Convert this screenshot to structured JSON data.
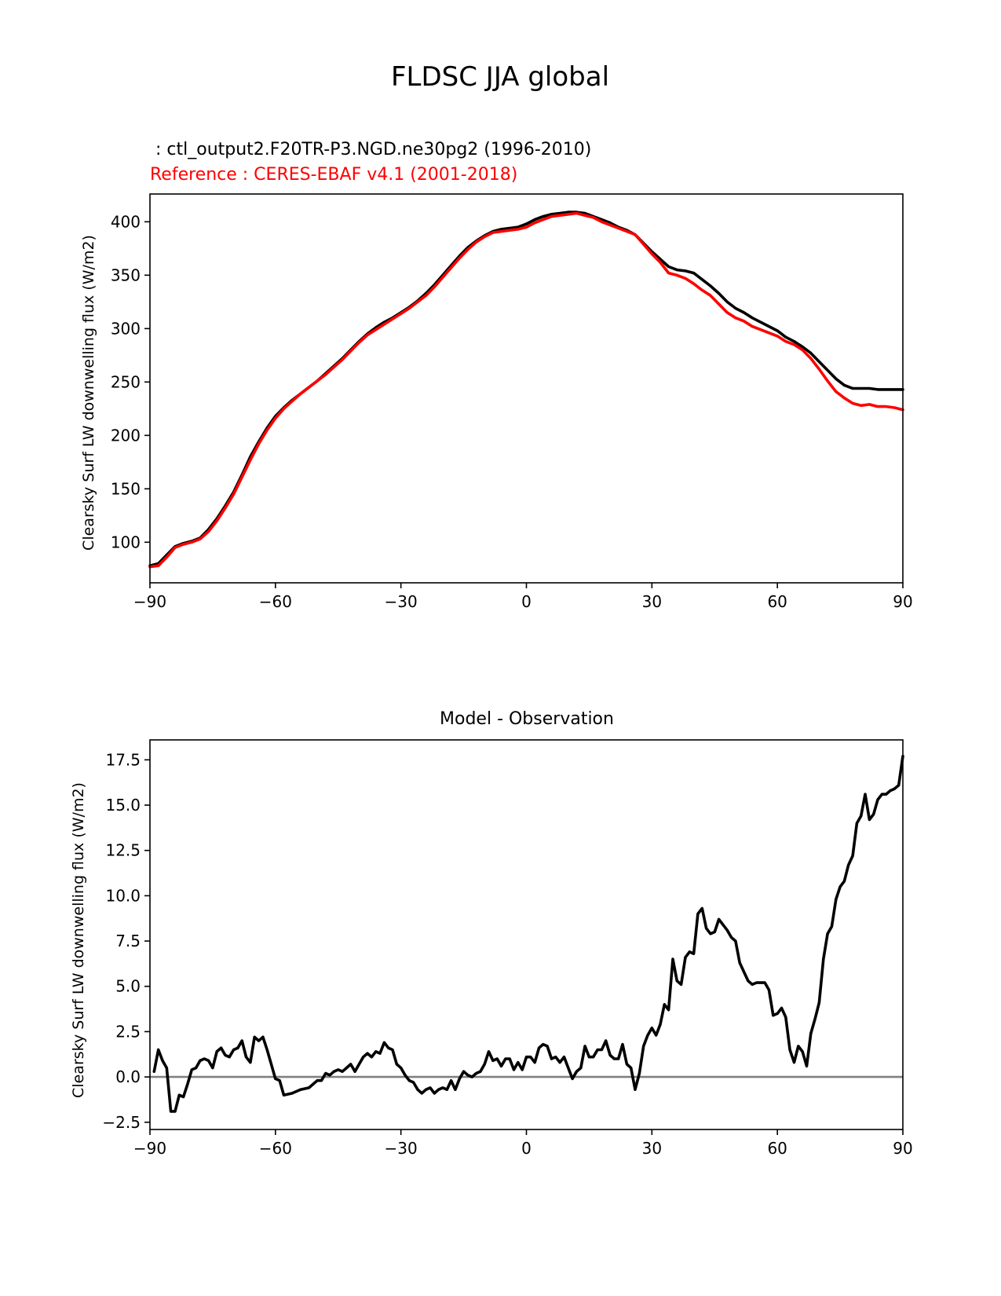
{
  "figure": {
    "title": "FLDSC JJA global"
  },
  "chart_data": [
    {
      "type": "line",
      "test_label": " : ctl_output2.F20TR-P3.NGD.ne30pg2 (1996-2010)",
      "ref_label": "Reference : CERES-EBAF v4.1 (2001-2018)",
      "xlabel": "",
      "ylabel": "Clearsky Surf LW downwelling flux (W/m2)",
      "xlim": [
        -90,
        90
      ],
      "ylim": [
        62,
        426
      ],
      "xticks": [
        -90,
        -60,
        -30,
        0,
        30,
        60,
        90
      ],
      "xtick_labels": [
        "−90",
        "−60",
        "−30",
        "0",
        "30",
        "60",
        "90"
      ],
      "yticks": [
        100,
        150,
        200,
        250,
        300,
        350,
        400
      ],
      "ytick_labels": [
        "100",
        "150",
        "200",
        "250",
        "300",
        "350",
        "400"
      ],
      "grid": false,
      "series": [
        {
          "color": "#000000",
          "x": [
            -90,
            -88,
            -86,
            -84,
            -82,
            -80,
            -78,
            -76,
            -74,
            -72,
            -70,
            -68,
            -66,
            -64,
            -62,
            -60,
            -58,
            -56,
            -54,
            -52,
            -50,
            -48,
            -46,
            -44,
            -42,
            -40,
            -38,
            -36,
            -34,
            -32,
            -30,
            -28,
            -26,
            -24,
            -22,
            -20,
            -18,
            -16,
            -14,
            -12,
            -10,
            -8,
            -6,
            -4,
            -2,
            0,
            2,
            4,
            6,
            8,
            10,
            12,
            14,
            16,
            18,
            20,
            22,
            24,
            26,
            28,
            30,
            32,
            34,
            36,
            38,
            40,
            42,
            44,
            46,
            48,
            50,
            52,
            54,
            56,
            58,
            60,
            62,
            64,
            66,
            68,
            70,
            72,
            74,
            76,
            78,
            80,
            82,
            84,
            86,
            88,
            90
          ],
          "y": [
            78,
            80,
            88,
            96,
            99,
            101,
            104,
            112,
            122,
            134,
            147,
            163,
            180,
            194,
            207,
            218,
            226,
            233,
            239,
            245,
            251,
            258,
            265,
            272,
            280,
            288,
            295,
            301,
            306,
            310,
            315,
            320,
            326,
            333,
            341,
            350,
            359,
            368,
            376,
            382,
            387,
            391,
            393,
            394,
            395,
            398,
            402,
            405,
            407,
            408,
            409,
            409,
            408,
            405,
            402,
            399,
            395,
            392,
            388,
            380,
            372,
            365,
            358,
            355,
            354,
            352,
            346,
            340,
            333,
            325,
            319,
            315,
            310,
            306,
            302,
            298,
            292,
            288,
            283,
            277,
            269,
            261,
            253,
            247,
            244,
            244,
            244,
            243,
            243,
            243,
            243
          ]
        },
        {
          "color": "#ff0000",
          "x": [
            -90,
            -88,
            -86,
            -84,
            -82,
            -80,
            -78,
            -76,
            -74,
            -72,
            -70,
            -68,
            -66,
            -64,
            -62,
            -60,
            -58,
            -56,
            -54,
            -52,
            -50,
            -48,
            -46,
            -44,
            -42,
            -40,
            -38,
            -36,
            -34,
            -32,
            -30,
            -28,
            -26,
            -24,
            -22,
            -20,
            -18,
            -16,
            -14,
            -12,
            -10,
            -8,
            -6,
            -4,
            -2,
            0,
            2,
            4,
            6,
            8,
            10,
            12,
            14,
            16,
            18,
            20,
            22,
            24,
            26,
            28,
            30,
            32,
            34,
            36,
            38,
            40,
            42,
            44,
            46,
            48,
            50,
            52,
            54,
            56,
            58,
            60,
            62,
            64,
            66,
            68,
            70,
            72,
            74,
            76,
            78,
            80,
            82,
            84,
            86,
            88,
            90
          ],
          "y": [
            77,
            78,
            86,
            95,
            98,
            100,
            103,
            110,
            120,
            132,
            145,
            161,
            177,
            192,
            205,
            216,
            225,
            232,
            239,
            245,
            251,
            257,
            264,
            271,
            279,
            287,
            294,
            299,
            304,
            309,
            314,
            319,
            325,
            331,
            339,
            348,
            357,
            366,
            374,
            381,
            386,
            390,
            391,
            392,
            393,
            395,
            399,
            402,
            405,
            406,
            407,
            408,
            406,
            404,
            400,
            397,
            394,
            391,
            388,
            379,
            370,
            362,
            352,
            350,
            347,
            342,
            336,
            331,
            323,
            315,
            310,
            307,
            302,
            299,
            296,
            293,
            288,
            285,
            280,
            272,
            262,
            251,
            241,
            235,
            230,
            228,
            229,
            227,
            227,
            226,
            224
          ]
        }
      ]
    },
    {
      "type": "line",
      "title": "Model - Observation",
      "xlabel": "",
      "ylabel": "Clearsky Surf LW downwelling flux (W/m2)",
      "xlim": [
        -90,
        90
      ],
      "ylim": [
        -2.9,
        18.6
      ],
      "xticks": [
        -90,
        -60,
        -30,
        0,
        30,
        60,
        90
      ],
      "xtick_labels": [
        "−90",
        "−60",
        "−30",
        "0",
        "30",
        "60",
        "90"
      ],
      "yticks": [
        -2.5,
        0.0,
        2.5,
        5.0,
        7.5,
        10.0,
        12.5,
        15.0,
        17.5
      ],
      "ytick_labels": [
        "−2.5",
        "0.0",
        "2.5",
        "5.0",
        "7.5",
        "10.0",
        "12.5",
        "15.0",
        "17.5"
      ],
      "grid": false,
      "zero_line": true,
      "series": [
        {
          "color": "#000000",
          "x": [
            -89,
            -88,
            -87,
            -86,
            -85,
            -84,
            -83,
            -82,
            -81,
            -80,
            -79,
            -78,
            -77,
            -76,
            -75,
            -74,
            -73,
            -72,
            -71,
            -70,
            -69,
            -68,
            -67,
            -66,
            -65,
            -64,
            -63,
            -62,
            -61,
            -60,
            -59,
            -58,
            -56,
            -54,
            -52,
            -50,
            -49,
            -48,
            -47,
            -46,
            -45,
            -44,
            -43,
            -42,
            -41,
            -40,
            -39,
            -38,
            -37,
            -36,
            -35,
            -34,
            -33,
            -32,
            -31,
            -30,
            -29,
            -28,
            -27,
            -26,
            -25,
            -24,
            -23,
            -22,
            -21,
            -20,
            -19,
            -18,
            -17,
            -16,
            -15,
            -14,
            -13,
            -12,
            -11,
            -10,
            -9,
            -8,
            -7,
            -6,
            -5,
            -4,
            -3,
            -2,
            -1,
            0,
            1,
            2,
            3,
            4,
            5,
            6,
            7,
            8,
            9,
            10,
            11,
            12,
            13,
            14,
            15,
            16,
            17,
            18,
            19,
            20,
            21,
            22,
            23,
            24,
            25,
            26,
            27,
            28,
            29,
            30,
            31,
            32,
            33,
            34,
            35,
            36,
            37,
            38,
            39,
            40,
            41,
            42,
            43,
            44,
            45,
            46,
            47,
            48,
            49,
            50,
            51,
            52,
            53,
            54,
            55,
            56,
            57,
            58,
            59,
            60,
            61,
            62,
            63,
            64,
            65,
            66,
            67,
            68,
            69,
            70,
            71,
            72,
            73,
            74,
            75,
            76,
            77,
            78,
            79,
            80,
            81,
            82,
            83,
            84,
            85,
            86,
            87,
            88,
            89,
            90
          ],
          "y": [
            0.3,
            1.5,
            0.9,
            0.5,
            -1.9,
            -1.9,
            -1.0,
            -1.1,
            -0.4,
            0.4,
            0.5,
            0.9,
            1.0,
            0.9,
            0.5,
            1.4,
            1.6,
            1.2,
            1.1,
            1.5,
            1.6,
            2.0,
            1.1,
            0.8,
            2.2,
            2.0,
            2.2,
            1.5,
            0.7,
            -0.1,
            -0.2,
            -1.0,
            -0.9,
            -0.7,
            -0.6,
            -0.2,
            -0.2,
            0.2,
            0.1,
            0.3,
            0.4,
            0.3,
            0.5,
            0.7,
            0.3,
            0.7,
            1.1,
            1.3,
            1.1,
            1.4,
            1.3,
            1.9,
            1.6,
            1.5,
            0.7,
            0.5,
            0.1,
            -0.2,
            -0.3,
            -0.7,
            -0.9,
            -0.7,
            -0.6,
            -0.9,
            -0.7,
            -0.6,
            -0.7,
            -0.2,
            -0.7,
            -0.1,
            0.3,
            0.1,
            0.0,
            0.2,
            0.3,
            0.7,
            1.4,
            0.9,
            1.0,
            0.6,
            1.0,
            1.0,
            0.4,
            0.8,
            0.4,
            1.1,
            1.1,
            0.8,
            1.6,
            1.8,
            1.7,
            1.0,
            1.1,
            0.8,
            1.1,
            0.5,
            -0.1,
            0.3,
            0.5,
            1.7,
            1.1,
            1.1,
            1.5,
            1.5,
            2.0,
            1.2,
            1.0,
            1.0,
            1.8,
            0.7,
            0.5,
            -0.7,
            0.2,
            1.7,
            2.3,
            2.7,
            2.3,
            2.9,
            4.0,
            3.7,
            6.5,
            5.3,
            5.1,
            6.6,
            6.9,
            6.8,
            9.0,
            9.3,
            8.2,
            7.9,
            8.0,
            8.7,
            8.4,
            8.1,
            7.7,
            7.5,
            6.3,
            5.8,
            5.3,
            5.1,
            5.2,
            5.2,
            5.2,
            4.8,
            3.4,
            3.5,
            3.8,
            3.3,
            1.5,
            0.8,
            1.7,
            1.4,
            0.6,
            2.4,
            3.2,
            4.1,
            6.5,
            7.9,
            8.3,
            9.8,
            10.5,
            10.8,
            11.7,
            12.2,
            14.0,
            14.4,
            15.6,
            14.2,
            14.5,
            15.3,
            15.6,
            15.6,
            15.8,
            15.9,
            16.1,
            17.7
          ]
        }
      ]
    }
  ]
}
